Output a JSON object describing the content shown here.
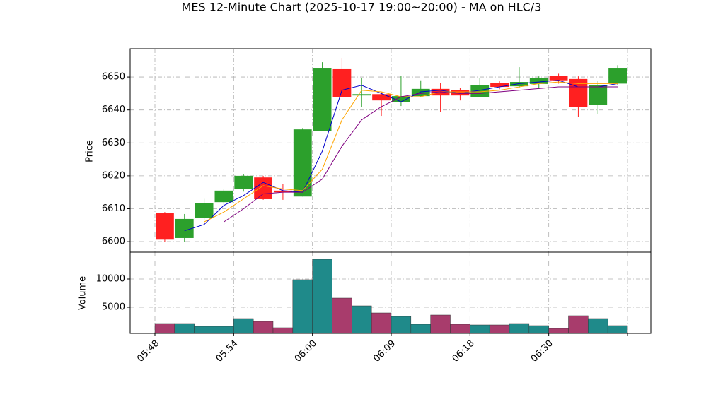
{
  "chart_data": {
    "type": "candlestick",
    "title": "MES 12-Minute Chart (2025-10-17 19:00~20:00) - MA on HLC/3",
    "ylabel": "Price",
    "ylim": [
      6596.8,
      6658.6
    ],
    "yticks": [
      6600,
      6610,
      6620,
      6630,
      6640,
      6650
    ],
    "grid": true,
    "xtick_labels": [
      "05:48",
      "05:54",
      "06:00",
      "06:09",
      "06:18",
      "06:30",
      null
    ],
    "up_color": "#2ca02c",
    "down_color": "#ff2020",
    "open": [
      6608.6,
      6601.1,
      6607.1,
      6612.0,
      6616.0,
      6619.5,
      6615.5,
      6613.7,
      6633.5,
      6652.6,
      6644.4,
      6644.8,
      6642.5,
      6644.2,
      6646.4,
      6646.1,
      6644.0,
      6648.3,
      6647.2,
      6647.9,
      6650.4,
      6649.4,
      6641.6,
      6648.0
    ],
    "high": [
      6609.0,
      6608.4,
      6613.0,
      6616.0,
      6620.4,
      6620.0,
      6617.5,
      6634.5,
      6654.5,
      6655.8,
      6649.6,
      6645.5,
      6650.4,
      6649.0,
      6648.3,
      6646.8,
      6649.8,
      6648.7,
      6653.0,
      6650.2,
      6651.0,
      6650.2,
      6648.9,
      6653.6
    ],
    "low": [
      6600.0,
      6600.0,
      6606.7,
      6611.2,
      6615.2,
      6612.7,
      6612.7,
      6613.7,
      6633.5,
      6644.0,
      6640.8,
      6638.2,
      6641.2,
      6643.8,
      6639.5,
      6642.9,
      6644.0,
      6646.3,
      6646.6,
      6646.4,
      6648.0,
      6637.8,
      6638.8,
      6647.6
    ],
    "close": [
      6600.6,
      6606.9,
      6611.8,
      6615.5,
      6620.0,
      6612.9,
      6615.0,
      6634.1,
      6652.8,
      6644.0,
      6644.8,
      6642.9,
      6644.2,
      6646.4,
      6644.4,
      6644.4,
      6647.6,
      6647.0,
      6648.5,
      6649.8,
      6649.0,
      6640.8,
      6647.6,
      6652.8
    ],
    "series": [
      {
        "color": "#0000cc",
        "values": [
          null,
          6603.3,
          6605.2,
          6611,
          6614,
          6618,
          6615.5,
          6615,
          6627.5,
          6646,
          6647.5,
          6645,
          6642.5,
          6645.5,
          6646,
          6645,
          6646,
          6647,
          6648,
          6648.5,
          6649,
          6647,
          6647,
          6648
        ]
      },
      {
        "color": "#ffa500",
        "values": [
          null,
          null,
          6606,
          6609,
          6613,
          6617,
          6616,
          6615.5,
          6622,
          6637,
          6646,
          6645.5,
          6644,
          6644,
          6645.5,
          6645.5,
          6645.5,
          6646,
          6647,
          6648,
          6648.5,
          6648,
          6648,
          6648
        ]
      },
      {
        "color": "#800080",
        "values": [
          null,
          null,
          null,
          6606,
          6610,
          6614.5,
          6615,
          6615,
          6619,
          6629,
          6637,
          6641,
          6644,
          6645,
          6645.5,
          6645,
          6645,
          6645.5,
          6646,
          6646.5,
          6647,
          6647,
          6647,
          6647
        ]
      }
    ],
    "volume": {
      "ylabel": "Volume",
      "ylim": [
        375,
        14750
      ],
      "yticks": [
        5000,
        10000
      ],
      "up_color": "#1f8a8a",
      "down_color": "#a83c6c",
      "values": [
        2125,
        2125,
        1625,
        1625,
        3000,
        2500,
        1375,
        9875,
        13500,
        6625,
        5250,
        4000,
        3375,
        2000,
        3625,
        2000,
        1875,
        1875,
        2125,
        1750,
        1250,
        3500,
        3000,
        1750
      ]
    }
  }
}
